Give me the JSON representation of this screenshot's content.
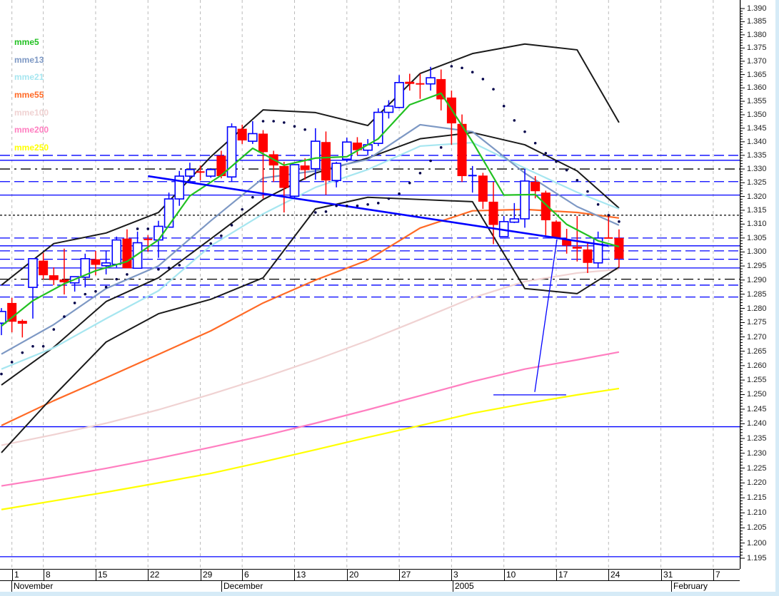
{
  "legend": [
    {
      "label": "mme5",
      "color": "#22c122"
    },
    {
      "label": "mme13",
      "color": "#7d98c4"
    },
    {
      "label": "mme21",
      "color": "#a6e6f0"
    },
    {
      "label": "mme55",
      "color": "#ff6a26"
    },
    {
      "label": "mme100",
      "color": "#f0d2d2"
    },
    {
      "label": "mme200",
      "color": "#ff7ec0"
    },
    {
      "label": "mme250",
      "color": "#ffff00"
    }
  ],
  "colors": {
    "bull": "#0000ff",
    "bear": "#ff0000",
    "bollinger": "#1a1a1a",
    "sar": "#00004a",
    "grid": "#bbbbbb"
  },
  "chart_data": {
    "type": "candlestick",
    "y_axis": {
      "min": 1.195,
      "max": 1.39,
      "scale": "log",
      "side": "right",
      "ticks": [
        "1.390",
        "1.385",
        "1.380",
        "1.375",
        "1.370",
        "1.365",
        "1.360",
        "1.355",
        "1.350",
        "1.345",
        "1.340",
        "1.335",
        "1.330",
        "1.325",
        "1.320",
        "1.315",
        "1.310",
        "1.305",
        "1.300",
        "1.295",
        "1.290",
        "1.285",
        "1.280",
        "1.275",
        "1.270",
        "1.265",
        "1.260",
        "1.255",
        "1.250",
        "1.245",
        "1.240",
        "1.235",
        "1.230",
        "1.225",
        "1.220",
        "1.215",
        "1.210",
        "1.205",
        "1.200",
        "1.195"
      ]
    },
    "x_axis": {
      "day_ticks": [
        "1",
        "8",
        "15",
        "22",
        "29",
        "6",
        "13",
        "20",
        "27",
        "3",
        "10",
        "17",
        "24",
        "31",
        "7"
      ],
      "month_labels": [
        "November",
        "December",
        "2005",
        "February"
      ]
    },
    "grid": "vertical dashed",
    "ohlc": [
      [
        1.2748,
        1.2801,
        1.2706,
        1.2789
      ],
      [
        1.2819,
        1.2837,
        1.2716,
        1.2753
      ],
      [
        1.2756,
        1.2761,
        1.2698,
        1.2746
      ],
      [
        1.2874,
        1.2976,
        1.2764,
        1.2976
      ],
      [
        1.2969,
        1.2996,
        1.2902,
        1.2917
      ],
      [
        1.2917,
        1.2945,
        1.2882,
        1.29
      ],
      [
        1.2902,
        1.3012,
        1.2849,
        1.2892
      ],
      [
        1.289,
        1.2912,
        1.2859,
        1.2912
      ],
      [
        1.291,
        1.2994,
        1.2874,
        1.2976
      ],
      [
        1.2974,
        1.3004,
        1.2917,
        1.2954
      ],
      [
        1.2951,
        1.3004,
        1.292,
        1.2961
      ],
      [
        1.2956,
        1.3055,
        1.2945,
        1.3043
      ],
      [
        1.3048,
        1.3081,
        1.2942,
        1.2942
      ],
      [
        1.2942,
        1.3073,
        1.294,
        1.3033
      ],
      [
        1.3045,
        1.306,
        1.3001,
        1.3043
      ],
      [
        1.3043,
        1.3112,
        1.2979,
        1.3092
      ],
      [
        1.3089,
        1.3214,
        1.3087,
        1.3191
      ],
      [
        1.3191,
        1.3293,
        1.3166,
        1.3274
      ],
      [
        1.3274,
        1.3323,
        1.3251,
        1.3298
      ],
      [
        1.3289,
        1.3313,
        1.3258,
        1.3286
      ],
      [
        1.3274,
        1.3303,
        1.3268,
        1.3298
      ],
      [
        1.3349,
        1.3367,
        1.3266,
        1.3274
      ],
      [
        1.3271,
        1.3468,
        1.3253,
        1.3455
      ],
      [
        1.3448,
        1.3463,
        1.3392,
        1.3405
      ],
      [
        1.3402,
        1.3476,
        1.3392,
        1.343
      ],
      [
        1.343,
        1.3443,
        1.3193,
        1.3362
      ],
      [
        1.3354,
        1.3367,
        1.3253,
        1.3313
      ],
      [
        1.3311,
        1.3326,
        1.3142,
        1.3231
      ],
      [
        1.3201,
        1.3318,
        1.3196,
        1.3316
      ],
      [
        1.3313,
        1.3339,
        1.3261,
        1.3296
      ],
      [
        1.3301,
        1.345,
        1.3261,
        1.3402
      ],
      [
        1.3399,
        1.3438,
        1.3206,
        1.3258
      ],
      [
        1.3258,
        1.3326,
        1.3233,
        1.3321
      ],
      [
        1.3336,
        1.3415,
        1.3326,
        1.3399
      ],
      [
        1.3397,
        1.3417,
        1.3351,
        1.3369
      ],
      [
        1.3369,
        1.341,
        1.3349,
        1.3389
      ],
      [
        1.3394,
        1.3524,
        1.3384,
        1.3509
      ],
      [
        1.3509,
        1.3554,
        1.3486,
        1.3532
      ],
      [
        1.3527,
        1.3648,
        1.3524,
        1.362
      ],
      [
        1.3623,
        1.3653,
        1.359,
        1.3615
      ],
      [
        1.3615,
        1.3653,
        1.3559,
        1.3613
      ],
      [
        1.3615,
        1.3679,
        1.359,
        1.3638
      ],
      [
        1.3633,
        1.3669,
        1.3516,
        1.3557
      ],
      [
        1.3564,
        1.359,
        1.3389,
        1.3468
      ],
      [
        1.3466,
        1.3501,
        1.3253,
        1.3274
      ],
      [
        1.3276,
        1.3311,
        1.3214,
        1.3276
      ],
      [
        1.3276,
        1.3286,
        1.3155,
        1.3181
      ],
      [
        1.3181,
        1.3253,
        1.3028,
        1.3097
      ],
      [
        1.3055,
        1.3129,
        1.3055,
        1.3109
      ],
      [
        1.3107,
        1.3176,
        1.3104,
        1.3119
      ],
      [
        1.3119,
        1.3301,
        1.3087,
        1.3256
      ],
      [
        1.3253,
        1.3274,
        1.3193,
        1.3219
      ],
      [
        1.3214,
        1.3221,
        1.306,
        1.3114
      ],
      [
        1.3109,
        1.3114,
        1.305,
        1.305
      ],
      [
        1.3045,
        1.3083,
        1.2994,
        1.3023
      ],
      [
        1.3019,
        1.3129,
        1.2966,
        1.3012
      ],
      [
        1.3009,
        1.3035,
        1.2925,
        1.2961
      ],
      [
        1.2961,
        1.3073,
        1.2942,
        1.305
      ],
      [
        1.305,
        1.3132,
        1.3048,
        1.3048
      ],
      [
        1.305,
        1.3081,
        1.2945,
        1.2976
      ]
    ],
    "moving_averages": [
      {
        "name": "mme250",
        "index": [
          0,
          5,
          10,
          15,
          20,
          25,
          30,
          35,
          40,
          45,
          50,
          55,
          59
        ],
        "values": [
          1.2111,
          1.214,
          1.2169,
          1.22,
          1.2232,
          1.2271,
          1.2312,
          1.2354,
          1.2394,
          1.2436,
          1.2469,
          1.2499,
          1.2521
        ]
      },
      {
        "name": "mme200",
        "index": [
          0,
          5,
          10,
          15,
          20,
          25,
          30,
          35,
          40,
          45,
          50,
          55,
          59
        ],
        "values": [
          1.219,
          1.2218,
          1.2249,
          1.2283,
          1.232,
          1.2359,
          1.2402,
          1.2448,
          1.2496,
          1.2545,
          1.2588,
          1.262,
          1.2647
        ]
      },
      {
        "name": "mme100",
        "index": [
          0,
          5,
          10,
          15,
          20,
          25,
          30,
          35,
          40,
          45,
          50,
          55,
          59
        ],
        "values": [
          1.2327,
          1.2363,
          1.2402,
          1.2448,
          1.2501,
          1.2558,
          1.262,
          1.2687,
          1.2761,
          1.2837,
          1.2895,
          1.2925,
          1.2938
        ]
      },
      {
        "name": "mme55",
        "index": [
          0,
          5,
          10,
          15,
          20,
          25,
          30,
          35,
          40,
          45,
          50,
          55,
          59
        ],
        "values": [
          1.2394,
          1.2479,
          1.2558,
          1.2639,
          1.2721,
          1.2819,
          1.29,
          1.2971,
          1.3086,
          1.3148,
          1.3153,
          1.3142,
          1.3122
        ]
      },
      {
        "name": "mme21",
        "index": [
          0,
          5,
          10,
          15,
          20,
          25,
          30,
          35,
          40,
          45,
          50,
          55,
          59
        ],
        "values": [
          1.2588,
          1.2662,
          1.2764,
          1.2862,
          1.3022,
          1.3137,
          1.3233,
          1.3298,
          1.3384,
          1.3397,
          1.3303,
          1.3215,
          1.3155
        ]
      },
      {
        "name": "mme13",
        "index": [
          0,
          5,
          10,
          15,
          20,
          25,
          30,
          35,
          40,
          45,
          50,
          55,
          59
        ],
        "values": [
          1.264,
          1.2743,
          1.287,
          1.295,
          1.3112,
          1.3267,
          1.3293,
          1.3335,
          1.3463,
          1.3437,
          1.3285,
          1.3163,
          1.3096
        ]
      },
      {
        "name": "mme5",
        "index": [
          0,
          3,
          6,
          9,
          12,
          15,
          18,
          21,
          24,
          27,
          30,
          33,
          36,
          39,
          42,
          45,
          48,
          51,
          54,
          57,
          59
        ],
        "values": [
          1.2738,
          1.2827,
          1.2887,
          1.2933,
          1.2966,
          1.3043,
          1.3202,
          1.3277,
          1.3376,
          1.3314,
          1.334,
          1.3345,
          1.3411,
          1.3537,
          1.358,
          1.34,
          1.3205,
          1.3207,
          1.3099,
          1.304,
          1.3019
        ]
      }
    ],
    "bollinger": {
      "index": [
        0,
        5,
        10,
        15,
        20,
        25,
        30,
        35,
        40,
        45,
        50,
        55,
        59
      ],
      "upper": [
        1.2882,
        1.303,
        1.3068,
        1.3142,
        1.3345,
        1.3518,
        1.3508,
        1.346,
        1.3654,
        1.3729,
        1.3765,
        1.3743,
        1.3471
      ],
      "middle": [
        1.2533,
        1.2664,
        1.2824,
        1.2908,
        1.3047,
        1.3189,
        1.3285,
        1.334,
        1.3411,
        1.3434,
        1.3389,
        1.3293,
        1.3158
      ],
      "lower": [
        1.2302,
        1.2496,
        1.2682,
        1.2781,
        1.2832,
        1.2908,
        1.3155,
        1.3197,
        1.3189,
        1.3181,
        1.287,
        1.2852,
        1.2946
      ]
    },
    "parabolic_sar": [
      1.2571,
      1.2612,
      1.2645,
      1.2667,
      1.2667,
      1.2726,
      1.2771,
      1.2819,
      1.285,
      1.286,
      1.2875,
      1.2903,
      1.292,
      1.3083,
      1.3083,
      1.2938,
      1.2943,
      1.2953,
      null,
      null,
      1.303,
      1.3058,
      1.3096,
      1.3153,
      1.3197,
      1.3476,
      1.3476,
      1.3471,
      1.3457,
      1.3445,
      1.3142,
      1.3145,
      1.3166,
      1.3166,
      1.3166,
      1.3171,
      1.3176,
      1.3192,
      1.321,
      1.3249,
      1.3285,
      1.333,
      1.3379,
      1.3681,
      1.3675,
      1.3659,
      1.3633,
      1.3595,
      1.3532,
      1.3479,
      1.3437,
      1.3395,
      1.3358,
      1.3327,
      1.3296,
      1.3259,
      1.3218,
      1.3171,
      1.3132,
      1.3109
    ],
    "horizontal_lines": [
      {
        "price": 1.335,
        "style": "dashed",
        "color": "#0000ff"
      },
      {
        "price": 1.3332,
        "style": "solid",
        "color": "#0000ff"
      },
      {
        "price": 1.33,
        "style": "dash-dot",
        "color": "#000000"
      },
      {
        "price": 1.3254,
        "style": "dashed",
        "color": "#0000ff"
      },
      {
        "price": 1.3205,
        "style": "solid",
        "color": "#0000ff"
      },
      {
        "price": 1.3132,
        "style": "dotted",
        "color": "#000000"
      },
      {
        "price": 1.305,
        "style": "dashed",
        "color": "#0000ff"
      },
      {
        "price": 1.3022,
        "style": "solid",
        "color": "#0000ff"
      },
      {
        "price": 1.3004,
        "style": "dashed",
        "color": "#0000ff"
      },
      {
        "price": 1.2974,
        "style": "dashed",
        "color": "#0000ff"
      },
      {
        "price": 1.2943,
        "style": "solid",
        "color": "#0000ff"
      },
      {
        "price": 1.2903,
        "style": "dash-dot",
        "color": "#000000"
      },
      {
        "price": 1.2882,
        "style": "dashed",
        "color": "#0000ff"
      },
      {
        "price": 1.284,
        "style": "dashed",
        "color": "#0000ff"
      },
      {
        "price": 1.239,
        "style": "solid",
        "color": "#0000ff"
      },
      {
        "price": 1.1955,
        "style": "solid",
        "color": "#0000ff"
      }
    ],
    "trendlines": [
      {
        "from": [
          14,
          1.3274
        ],
        "to": [
          58,
          1.3022
        ],
        "color": "#0000ff",
        "weight": "thick"
      },
      {
        "from": [
          50.95,
          1.2509
        ],
        "to": [
          53.07,
          1.3045
        ],
        "color": "#0000ff",
        "weight": "thin"
      },
      {
        "from": [
          47,
          1.2499
        ],
        "to": [
          53.95,
          1.2499
        ],
        "color": "#0000ff",
        "weight": "thin"
      }
    ]
  }
}
